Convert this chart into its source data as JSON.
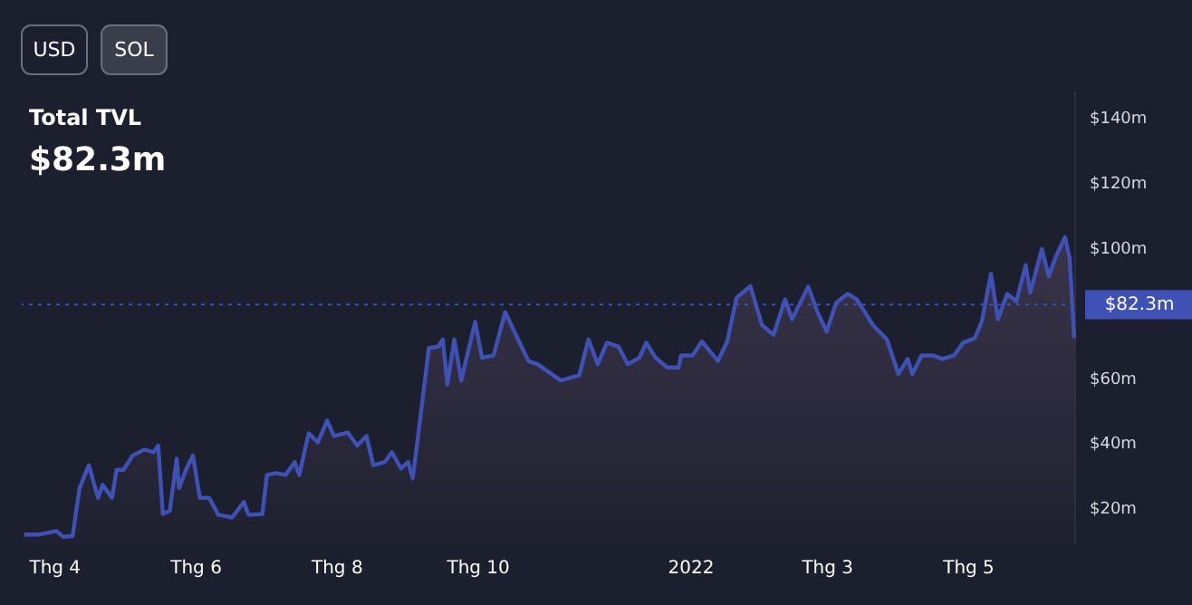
{
  "chart_data": {
    "type": "area",
    "title": "Total TVL",
    "subtitle": "$82.3m",
    "annotations": [
      "USD",
      "SOL"
    ],
    "x": [
      "2021-03-19",
      "2021-03-25",
      "2021-04-02",
      "2021-04-05",
      "2021-04-09",
      "2021-04-12",
      "2021-04-16",
      "2021-04-20",
      "2021-04-22",
      "2021-04-26",
      "2021-04-28",
      "2021-05-01",
      "2021-05-05",
      "2021-05-10",
      "2021-05-14",
      "2021-05-16",
      "2021-05-18",
      "2021-05-21",
      "2021-05-24",
      "2021-05-25",
      "2021-05-28",
      "2021-05-31",
      "2021-06-03",
      "2021-06-07",
      "2021-06-11",
      "2021-06-17",
      "2021-06-22",
      "2021-06-24",
      "2021-06-30",
      "2021-07-02",
      "2021-07-06",
      "2021-07-10",
      "2021-07-14",
      "2021-07-16",
      "2021-07-20",
      "2021-07-24",
      "2021-07-28",
      "2021-07-31",
      "2021-08-06",
      "2021-08-10",
      "2021-08-14",
      "2021-08-17",
      "2021-08-22",
      "2021-08-25",
      "2021-08-29",
      "2021-09-01",
      "2021-09-03",
      "2021-09-05",
      "2021-09-10",
      "2021-09-14",
      "2021-09-16",
      "2021-09-18",
      "2021-09-21",
      "2021-09-24",
      "2021-09-26",
      "2021-09-30",
      "2021-10-03",
      "2021-10-08",
      "2021-10-13",
      "2021-10-17",
      "2021-10-23",
      "2021-10-27",
      "2021-11-06",
      "2021-11-14",
      "2021-11-18",
      "2021-11-22",
      "2021-11-26",
      "2021-12-01",
      "2021-12-05",
      "2021-12-10",
      "2021-12-13",
      "2021-12-17",
      "2021-12-22",
      "2021-12-27",
      "2021-12-28",
      "2022-01-02",
      "2022-01-06",
      "2022-01-13",
      "2022-01-17",
      "2022-01-21",
      "2022-01-27",
      "2022-02-01",
      "2022-02-06",
      "2022-02-11",
      "2022-02-14",
      "2022-02-21",
      "2022-02-25",
      "2022-03-01",
      "2022-03-05",
      "2022-03-10",
      "2022-03-14",
      "2022-03-21",
      "2022-03-27",
      "2022-04-01",
      "2022-04-05",
      "2022-04-07",
      "2022-04-11",
      "2022-04-16",
      "2022-04-20",
      "2022-04-25",
      "2022-04-29",
      "2022-05-04",
      "2022-05-07",
      "2022-05-11",
      "2022-05-14",
      "2022-05-18",
      "2022-05-22",
      "2022-05-26",
      "2022-05-28",
      "2022-06-02",
      "2022-06-05",
      "2022-06-08",
      "2022-06-12",
      "2022-06-14",
      "2022-06-16"
    ],
    "series": [
      {
        "color": "#3f51b5",
        "values": [
          11.7,
          11.7,
          12.8,
          11,
          11.3,
          26,
          33,
          23,
          27,
          23,
          31.6,
          31.6,
          36,
          37.8,
          37,
          39,
          18,
          19,
          35,
          26,
          31.6,
          36,
          23,
          23,
          17.8,
          17,
          21.7,
          17.8,
          18,
          30,
          30.6,
          30,
          33.9,
          30,
          42.8,
          40,
          46.7,
          42,
          43,
          39,
          42,
          33,
          34,
          37,
          32,
          34,
          29,
          40,
          69,
          69.4,
          71.6,
          57.8,
          71.6,
          59,
          65,
          77,
          66,
          66.7,
          80,
          74,
          65,
          64,
          59,
          60.6,
          71.6,
          64,
          70.6,
          69.4,
          64,
          66,
          70.6,
          66,
          63,
          63,
          66.7,
          66.7,
          71,
          65,
          71,
          84.4,
          88,
          76,
          73,
          83.9,
          77.8,
          87.8,
          80,
          74,
          82.8,
          85.6,
          83.9,
          76,
          71.6,
          61,
          65.6,
          61,
          66.7,
          66.7,
          65.6,
          66.7,
          70.6,
          72,
          77,
          91.7,
          77.8,
          85.6,
          83.3,
          94.4,
          86,
          99.4,
          91,
          97,
          103,
          96.7,
          72
        ]
      }
    ],
    "xlim": [
      "2021-03-18",
      "2022-06-16"
    ],
    "xticks": [
      {
        "value": "2021-04-01",
        "label": "Thg 4"
      },
      {
        "value": "2021-06-01",
        "label": "Thg 6"
      },
      {
        "value": "2021-08-01",
        "label": "Thg 8"
      },
      {
        "value": "2021-10-01",
        "label": "Thg 10"
      },
      {
        "value": "2022-01-01",
        "label": "2022"
      },
      {
        "value": "2022-03-01",
        "label": "Thg 3"
      },
      {
        "value": "2022-05-01",
        "label": "Thg 5"
      }
    ],
    "ylim": [
      9,
      148
    ],
    "yticks": [
      {
        "value": 20,
        "label": "$20m"
      },
      {
        "value": 40,
        "label": "$40m"
      },
      {
        "value": 60,
        "label": "$60m"
      },
      {
        "value": 100,
        "label": "$100m"
      },
      {
        "value": 120,
        "label": "$120m"
      },
      {
        "value": 140,
        "label": "$140m"
      }
    ],
    "ref_lines": [
      {
        "axis": "y",
        "value": 82.3,
        "label": "$82.3m",
        "color": "#3f51b5",
        "line_style": "dotted"
      }
    ],
    "grid": false
  }
}
